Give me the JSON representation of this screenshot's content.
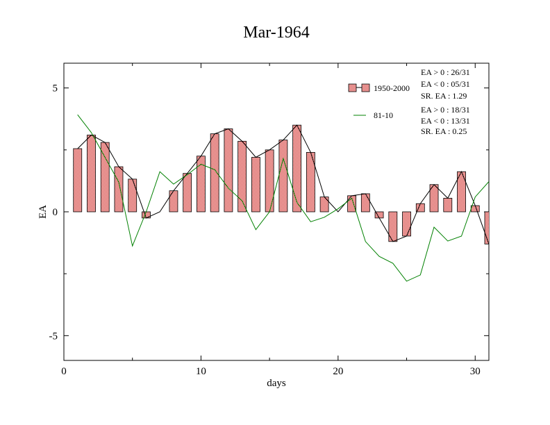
{
  "chart_data": {
    "type": "bar",
    "title": "Mar-1964",
    "xlabel": "days",
    "ylabel": "EA",
    "xlim": [
      0,
      31
    ],
    "ylim": [
      -6,
      6
    ],
    "x_ticks": [
      0,
      10,
      20,
      30
    ],
    "y_ticks": [
      -5,
      0,
      5
    ],
    "x_tick_labels": [
      "0",
      "10",
      "20",
      "30"
    ],
    "y_tick_labels": [
      "-5",
      "0",
      "5"
    ],
    "grid": false,
    "legend_position": "top-right",
    "x": [
      1,
      2,
      3,
      4,
      5,
      6,
      7,
      8,
      9,
      10,
      11,
      12,
      13,
      14,
      15,
      16,
      17,
      18,
      19,
      20,
      21,
      22,
      23,
      24,
      25,
      26,
      27,
      28,
      29,
      30,
      31
    ],
    "series": [
      {
        "name": "1950-2000",
        "type": "bar-with-line",
        "color": "#e06666",
        "line_color": "#000000",
        "values": [
          2.55,
          3.1,
          2.8,
          1.82,
          1.32,
          -0.25,
          0.0,
          0.85,
          1.55,
          2.25,
          3.15,
          3.35,
          2.85,
          2.2,
          2.5,
          2.9,
          3.5,
          2.4,
          0.6,
          0.0,
          0.65,
          0.73,
          -0.25,
          -1.2,
          -0.98,
          0.33,
          1.1,
          0.55,
          1.62,
          0.25,
          -1.3
        ]
      },
      {
        "name": "81-10",
        "type": "line",
        "color": "#008000",
        "values": [
          3.92,
          3.2,
          2.2,
          1.2,
          -1.38,
          0.0,
          1.62,
          1.12,
          1.5,
          1.92,
          1.7,
          0.95,
          0.45,
          -0.72,
          0.0,
          2.15,
          0.38,
          -0.4,
          -0.22,
          0.12,
          0.55,
          -1.2,
          -1.8,
          -2.08,
          -2.8,
          -2.55,
          -0.62,
          -1.18,
          -0.98,
          0.6,
          1.22
        ]
      }
    ],
    "stats": [
      {
        "series": "1950-2000",
        "lines": [
          "EA > 0 : 26/31",
          "EA < 0 : 05/31",
          "SR. EA :  1.29"
        ]
      },
      {
        "series": "81-10",
        "lines": [
          "EA > 0 : 18/31",
          "EA < 0 : 13/31",
          "SR. EA :  0.25"
        ]
      }
    ]
  }
}
